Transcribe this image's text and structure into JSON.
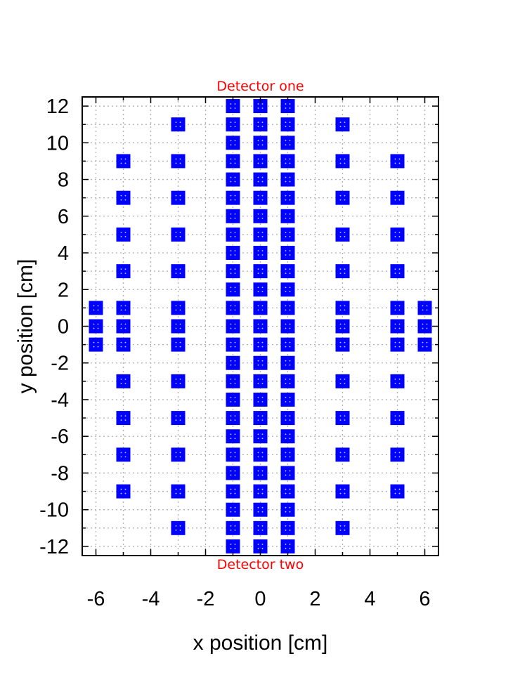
{
  "chart_data": {
    "type": "scatter",
    "title": "",
    "xlabel": "x position [cm]",
    "ylabel": "y position [cm]",
    "xlim": [
      -6.5,
      6.5
    ],
    "ylim": [
      -12.5,
      12.5
    ],
    "grid": true,
    "legend": "none",
    "marker_color": "#0000ff",
    "annotation_color": "#ff0000",
    "annotations": {
      "top": "Detector one",
      "bottom": "Detector two"
    },
    "x_ticks": [
      {
        "value": -6,
        "label": "-6"
      },
      {
        "value": -4,
        "label": "-4"
      },
      {
        "value": -2,
        "label": "-2"
      },
      {
        "value": 0,
        "label": "0"
      },
      {
        "value": 2,
        "label": "2"
      },
      {
        "value": 4,
        "label": "4"
      },
      {
        "value": 6,
        "label": "6"
      }
    ],
    "y_ticks": [
      {
        "value": 12,
        "label": "12"
      },
      {
        "value": 10,
        "label": "10"
      },
      {
        "value": 8,
        "label": "8"
      },
      {
        "value": 6,
        "label": "6"
      },
      {
        "value": 4,
        "label": "4"
      },
      {
        "value": 2,
        "label": "2"
      },
      {
        "value": 0,
        "label": "0"
      },
      {
        "value": -2,
        "label": "-2"
      },
      {
        "value": -4,
        "label": "-4"
      },
      {
        "value": -6,
        "label": "-6"
      },
      {
        "value": -8,
        "label": "-8"
      },
      {
        "value": -10,
        "label": "-10"
      },
      {
        "value": -12,
        "label": "-12"
      }
    ],
    "columns": [
      {
        "x": -6,
        "y": [
          -1,
          0,
          1
        ]
      },
      {
        "x": -5,
        "y": [
          -9,
          -7,
          -5,
          -3,
          -1,
          0,
          1,
          3,
          5,
          7,
          9
        ]
      },
      {
        "x": -3,
        "y": [
          -11,
          -9,
          -7,
          -5,
          -3,
          -1,
          0,
          1,
          3,
          5,
          7,
          9,
          11
        ]
      },
      {
        "x": -1,
        "y": [
          -12,
          -11,
          -10,
          -9,
          -8,
          -7,
          -6,
          -5,
          -4,
          -3,
          -2,
          -1,
          0,
          1,
          2,
          3,
          4,
          5,
          6,
          7,
          8,
          9,
          10,
          11,
          12
        ]
      },
      {
        "x": 0,
        "y": [
          -12,
          -11,
          -10,
          -9,
          -8,
          -7,
          -6,
          -5,
          -4,
          -3,
          -2,
          -1,
          0,
          1,
          2,
          3,
          4,
          5,
          6,
          7,
          8,
          9,
          10,
          11,
          12
        ]
      },
      {
        "x": 1,
        "y": [
          -12,
          -11,
          -10,
          -9,
          -8,
          -7,
          -6,
          -5,
          -4,
          -3,
          -2,
          -1,
          0,
          1,
          2,
          3,
          4,
          5,
          6,
          7,
          8,
          9,
          10,
          11,
          12
        ]
      },
      {
        "x": 3,
        "y": [
          -11,
          -9,
          -7,
          -5,
          -3,
          -1,
          0,
          1,
          3,
          5,
          7,
          9,
          11
        ]
      },
      {
        "x": 5,
        "y": [
          -9,
          -7,
          -5,
          -3,
          -1,
          0,
          1,
          3,
          5,
          7,
          9
        ]
      },
      {
        "x": 6,
        "y": [
          -1,
          0,
          1
        ]
      }
    ]
  }
}
